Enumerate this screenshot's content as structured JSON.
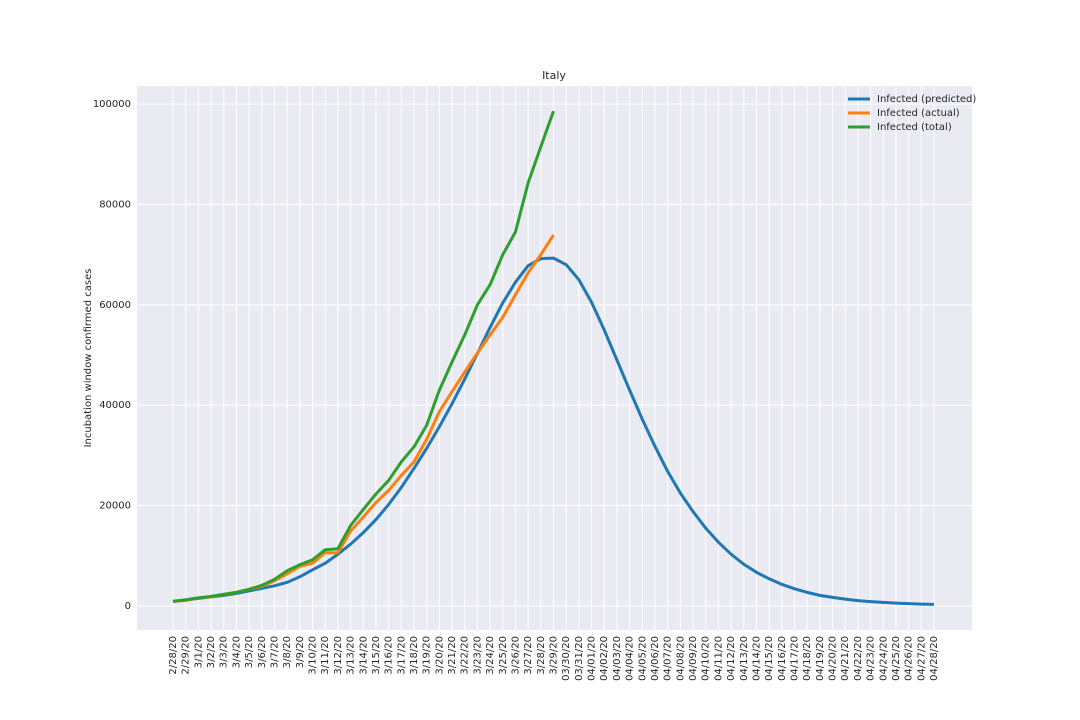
{
  "chart_data": {
    "type": "line",
    "title": "Italy",
    "y_label": "Incubation window confirmed cases",
    "categories": [
      "2/28/20",
      "2/29/20",
      "3/1/20",
      "3/2/20",
      "3/3/20",
      "3/4/20",
      "3/5/20",
      "3/6/20",
      "3/7/20",
      "3/8/20",
      "3/9/20",
      "3/10/20",
      "3/11/20",
      "3/12/20",
      "3/13/20",
      "3/14/20",
      "3/15/20",
      "3/16/20",
      "3/17/20",
      "3/18/20",
      "3/19/20",
      "3/20/20",
      "3/21/20",
      "3/22/20",
      "3/23/20",
      "3/24/20",
      "3/25/20",
      "3/26/20",
      "3/27/20",
      "3/28/20",
      "3/29/20",
      "03/30/20",
      "03/31/20",
      "04/01/20",
      "04/02/20",
      "04/03/20",
      "04/04/20",
      "04/05/20",
      "04/06/20",
      "04/07/20",
      "04/08/20",
      "04/09/20",
      "04/10/20",
      "04/11/20",
      "04/12/20",
      "04/13/20",
      "04/14/20",
      "04/15/20",
      "04/16/20",
      "04/17/20",
      "04/18/20",
      "04/19/20",
      "04/20/20",
      "04/21/20",
      "04/22/20",
      "04/23/20",
      "04/24/20",
      "04/25/20",
      "04/26/20",
      "04/27/20",
      "04/28/20"
    ],
    "series": [
      {
        "name": "Infected (predicted)",
        "color": "#1f77b4",
        "values": [
          900,
          1200,
          1500,
          1800,
          2100,
          2500,
          3000,
          3500,
          4000,
          4700,
          5800,
          7200,
          8500,
          10300,
          12300,
          14600,
          17200,
          20200,
          23600,
          27400,
          31400,
          35700,
          40300,
          45200,
          50300,
          55500,
          60400,
          64500,
          67800,
          69200,
          69300,
          68000,
          65000,
          60500,
          55000,
          49000,
          43000,
          37200,
          31800,
          26800,
          22500,
          18800,
          15500,
          12700,
          10300,
          8300,
          6700,
          5400,
          4300,
          3400,
          2700,
          2100,
          1700,
          1350,
          1050,
          850,
          700,
          550,
          450,
          350,
          300
        ]
      },
      {
        "name": "Infected (actual)",
        "color": "#ff7f0e",
        "values": [
          900,
          1100,
          1600,
          1800,
          2300,
          2700,
          3300,
          3900,
          5000,
          6400,
          7900,
          8500,
          10600,
          10600,
          14900,
          17700,
          20600,
          23000,
          26000,
          28700,
          33200,
          38700,
          42700,
          46600,
          50400,
          54000,
          57500,
          62000,
          66400,
          70000,
          73900,
          null,
          null,
          null,
          null,
          null,
          null,
          null,
          null,
          null,
          null,
          null,
          null,
          null,
          null,
          null,
          null,
          null,
          null,
          null,
          null,
          null,
          null,
          null,
          null,
          null,
          null,
          null,
          null,
          null,
          null
        ]
      },
      {
        "name": "Infected (total)",
        "color": "#2ca02c",
        "values": [
          900,
          1200,
          1600,
          1900,
          2300,
          2700,
          3300,
          4100,
          5300,
          7000,
          8200,
          9200,
          11200,
          11400,
          16000,
          19200,
          22300,
          25000,
          28700,
          31700,
          36000,
          43000,
          48600,
          54000,
          60000,
          64000,
          70000,
          74500,
          84300,
          91500,
          98600,
          null,
          null,
          null,
          null,
          null,
          null,
          null,
          null,
          null,
          null,
          null,
          null,
          null,
          null,
          null,
          null,
          null,
          null,
          null,
          null,
          null,
          null,
          null,
          null,
          null,
          null,
          null,
          null,
          null,
          null
        ]
      }
    ],
    "ylim": [
      -4800,
      103600
    ],
    "yticks": [
      0,
      20000,
      40000,
      60000,
      80000,
      100000
    ],
    "grid": true,
    "legend": "upper right"
  }
}
